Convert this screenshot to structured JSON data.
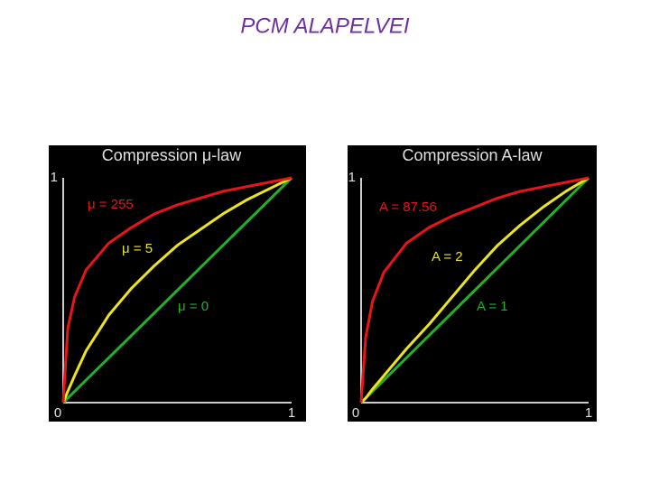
{
  "slide_title": "PCM ALAPELVEI",
  "chart_data": [
    {
      "type": "line",
      "title": "Compression μ-law",
      "x": [
        0,
        0.02,
        0.05,
        0.1,
        0.2,
        0.3,
        0.4,
        0.5,
        0.6,
        0.7,
        0.8,
        0.9,
        1
      ],
      "xlim": [
        0,
        1
      ],
      "ylim": [
        0,
        1
      ],
      "xticks": [
        0,
        1
      ],
      "yticks": [
        1
      ],
      "series": [
        {
          "name": "μ = 255",
          "color": "#e8141a",
          "values": [
            0,
            0.33,
            0.47,
            0.59,
            0.71,
            0.78,
            0.84,
            0.88,
            0.91,
            0.94,
            0.96,
            0.98,
            1
          ]
        },
        {
          "name": "μ = 5",
          "color": "#ece41e",
          "values": [
            0,
            0.05,
            0.12,
            0.23,
            0.39,
            0.51,
            0.61,
            0.7,
            0.77,
            0.84,
            0.9,
            0.95,
            1
          ]
        },
        {
          "name": "μ = 0",
          "color": "#22b02a",
          "values": [
            0,
            0.02,
            0.05,
            0.1,
            0.2,
            0.3,
            0.4,
            0.5,
            0.6,
            0.7,
            0.8,
            0.9,
            1
          ]
        }
      ]
    },
    {
      "type": "line",
      "title": "Compression A-law",
      "x": [
        0,
        0.02,
        0.05,
        0.1,
        0.2,
        0.3,
        0.4,
        0.5,
        0.6,
        0.7,
        0.8,
        0.9,
        1
      ],
      "xlim": [
        0,
        1
      ],
      "ylim": [
        0,
        1
      ],
      "xticks": [
        0,
        1
      ],
      "yticks": [
        1
      ],
      "series": [
        {
          "name": "A = 87.56",
          "color": "#e8141a",
          "values": [
            0,
            0.29,
            0.45,
            0.58,
            0.71,
            0.78,
            0.83,
            0.87,
            0.91,
            0.94,
            0.96,
            0.98,
            1
          ]
        },
        {
          "name": "A = 2",
          "color": "#ece41e",
          "values": [
            0,
            0.02,
            0.06,
            0.12,
            0.24,
            0.35,
            0.47,
            0.59,
            0.7,
            0.79,
            0.87,
            0.94,
            1
          ]
        },
        {
          "name": "A = 1",
          "color": "#22b02a",
          "values": [
            0,
            0.02,
            0.05,
            0.1,
            0.2,
            0.3,
            0.4,
            0.5,
            0.6,
            0.7,
            0.8,
            0.9,
            1
          ]
        }
      ]
    }
  ]
}
